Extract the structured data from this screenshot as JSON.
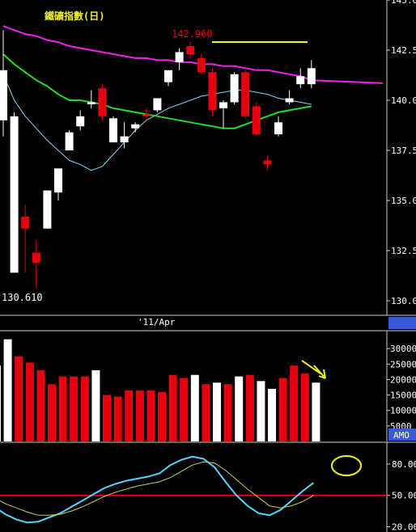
{
  "chart_data": [
    {
      "type": "candlestick",
      "title": "鐵礦指數(日)",
      "x_label": "'11/Apr",
      "annotations": {
        "high_label": "142.960",
        "low_label": "130.610"
      },
      "ylim": [
        130.0,
        145.0
      ],
      "y_ticks": [
        "130.0",
        "132.5",
        "135.0",
        "137.5",
        "140.0",
        "142.5",
        "145.0"
      ],
      "grid": false,
      "colors": {
        "up": "#ffffff",
        "down": "#e8000f",
        "ma_short": "#7fd8ff",
        "ma_mid": "#22dd22",
        "ma_long": "#ee22ee",
        "annotation": "#f0f020"
      },
      "candles": [
        {
          "open": 139.0,
          "high": 143.5,
          "low": 138.2,
          "close": 141.5
        },
        {
          "open": 131.4,
          "high": 139.4,
          "low": 131.4,
          "close": 139.2
        },
        {
          "open": 134.2,
          "high": 134.8,
          "low": 131.4,
          "close": 133.6
        },
        {
          "open": 132.4,
          "high": 133.0,
          "low": 130.6,
          "close": 131.9
        },
        {
          "open": 133.6,
          "high": 135.5,
          "low": 133.6,
          "close": 135.5
        },
        {
          "open": 135.4,
          "high": 136.6,
          "low": 135.0,
          "close": 136.6
        },
        {
          "open": 137.5,
          "high": 138.5,
          "low": 137.5,
          "close": 138.4
        },
        {
          "open": 138.7,
          "high": 139.5,
          "low": 138.5,
          "close": 139.2
        },
        {
          "open": 139.8,
          "high": 140.5,
          "low": 139.6,
          "close": 139.9
        },
        {
          "open": 140.6,
          "high": 140.8,
          "low": 139.0,
          "close": 139.2
        },
        {
          "open": 137.9,
          "high": 139.2,
          "low": 137.9,
          "close": 139.1
        },
        {
          "open": 137.9,
          "high": 138.9,
          "low": 137.6,
          "close": 138.2
        },
        {
          "open": 138.6,
          "high": 138.9,
          "low": 138.4,
          "close": 138.8
        },
        {
          "open": 139.3,
          "high": 139.6,
          "low": 139.0,
          "close": 139.2
        },
        {
          "open": 139.5,
          "high": 140.0,
          "low": 139.4,
          "close": 140.1
        },
        {
          "open": 140.9,
          "high": 141.5,
          "low": 140.7,
          "close": 141.5
        },
        {
          "open": 141.9,
          "high": 142.6,
          "low": 141.5,
          "close": 142.4
        },
        {
          "open": 142.7,
          "high": 142.9,
          "low": 142.1,
          "close": 142.3
        },
        {
          "open": 142.1,
          "high": 142.3,
          "low": 141.3,
          "close": 141.4
        },
        {
          "open": 141.4,
          "high": 141.6,
          "low": 139.2,
          "close": 139.5
        },
        {
          "open": 139.6,
          "high": 140.0,
          "low": 138.6,
          "close": 139.9
        },
        {
          "open": 139.9,
          "high": 141.4,
          "low": 139.8,
          "close": 141.3
        },
        {
          "open": 141.4,
          "high": 141.5,
          "low": 139.1,
          "close": 139.2
        },
        {
          "open": 139.7,
          "high": 139.9,
          "low": 138.2,
          "close": 138.3
        },
        {
          "open": 137.0,
          "high": 137.2,
          "low": 136.5,
          "close": 136.8
        },
        {
          "open": 138.3,
          "high": 139.2,
          "low": 138.2,
          "close": 138.9
        },
        {
          "open": 139.9,
          "high": 140.5,
          "low": 139.8,
          "close": 140.1
        },
        {
          "open": 140.8,
          "high": 141.6,
          "low": 140.6,
          "close": 141.2
        },
        {
          "open": 140.8,
          "high": 142.0,
          "low": 140.6,
          "close": 141.6
        }
      ],
      "moving_averages": [
        {
          "values": [
            141.3,
            140.0,
            139.2,
            138.6,
            138.0,
            137.5,
            137.0,
            136.8,
            136.5,
            136.7,
            137.3,
            137.9,
            138.5,
            139.0,
            139.3,
            139.6,
            139.8,
            140.0,
            140.2,
            140.3,
            140.4,
            140.5,
            140.5,
            140.4,
            140.3,
            140.1,
            140.0,
            139.9,
            139.8
          ]
        },
        {
          "values": [
            142.3,
            141.8,
            141.4,
            141.0,
            140.7,
            140.3,
            140.0,
            140.0,
            139.9,
            139.8,
            139.6,
            139.5,
            139.4,
            139.3,
            139.2,
            139.1,
            139.0,
            138.9,
            138.8,
            138.7,
            138.6,
            138.6,
            138.8,
            139.0,
            139.2,
            139.4,
            139.5,
            139.6,
            139.7
          ]
        },
        {
          "values": [
            143.7,
            143.5,
            143.3,
            143.2,
            143.0,
            142.9,
            142.7,
            142.6,
            142.5,
            142.4,
            142.3,
            142.2,
            142.1,
            142.1,
            142.0,
            142.0,
            141.9,
            141.9,
            141.8,
            141.8,
            141.7,
            141.7,
            141.6,
            141.5,
            141.5,
            141.4,
            141.3,
            141.2,
            141.0
          ]
        }
      ]
    },
    {
      "type": "bar",
      "legend_tag": "AMO",
      "ylim": [
        0,
        35000
      ],
      "y_ticks": [
        "5000",
        "10000",
        "15000",
        "20000",
        "25000",
        "30000"
      ],
      "values": [
        24500,
        33000,
        27500,
        25500,
        23000,
        18500,
        21000,
        21000,
        21000,
        23000,
        15000,
        14500,
        16500,
        16500,
        16500,
        16000,
        21500,
        20500,
        21500,
        18500,
        19000,
        18500,
        21000,
        21500,
        19500,
        17000,
        20500,
        24500,
        22000,
        19000
      ],
      "colors": [
        "#ffffff",
        "#ffffff",
        "#e8000f",
        "#e8000f",
        "#e8000f",
        "#e8000f",
        "#e8000f",
        "#e8000f",
        "#e8000f",
        "#ffffff",
        "#e8000f",
        "#e8000f",
        "#e8000f",
        "#e8000f",
        "#e8000f",
        "#e8000f",
        "#e8000f",
        "#e8000f",
        "#ffffff",
        "#e8000f",
        "#ffffff",
        "#e8000f",
        "#ffffff",
        "#e8000f",
        "#ffffff",
        "#ffffff",
        "#e8000f",
        "#e8000f",
        "#e8000f",
        "#ffffff"
      ]
    },
    {
      "type": "line",
      "ylim": [
        15,
        100
      ],
      "y_ticks": [
        "20.00",
        "50.00",
        "80.00"
      ],
      "reference_line": 50,
      "series": [
        {
          "values": [
            39,
            32,
            27,
            24,
            25,
            29,
            33,
            39,
            45,
            51,
            57,
            61,
            64,
            66,
            68,
            71,
            79,
            84,
            87,
            85,
            77,
            63,
            50,
            40,
            33,
            31,
            36,
            45,
            54,
            62
          ],
          "color": "#55d4ff"
        },
        {
          "values": [
            48,
            42,
            38,
            34,
            31,
            31,
            32,
            35,
            39,
            44,
            49,
            53,
            56,
            59,
            61,
            63,
            67,
            73,
            79,
            82,
            81,
            74,
            65,
            56,
            48,
            40,
            38,
            40,
            44,
            50
          ],
          "color": "#c8d050"
        }
      ]
    }
  ]
}
